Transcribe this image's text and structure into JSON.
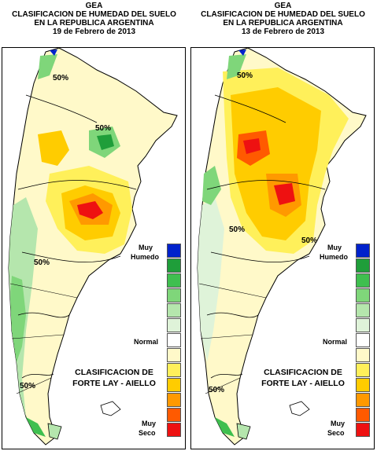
{
  "panels": [
    {
      "org": "GEA",
      "title1": "CLASIFICACION DE HUMEDAD DEL SUELO",
      "title2": "EN LA REPUBLICA ARGENTINA",
      "date": "19 de Febrero de 2013",
      "contour_labels": [
        "50%",
        "50%",
        "50%",
        "50%"
      ]
    },
    {
      "org": "GEA",
      "title1": "CLASIFICACION DE HUMEDAD DEL SUELO",
      "title2": "EN LA REPUBLICA ARGENTINA",
      "date": "13 de Febrero de 2013",
      "contour_labels": [
        "50%",
        "50%",
        "50%",
        "50%"
      ]
    }
  ],
  "legend": {
    "top_label_1": "Muy",
    "top_label_2": "Humedo",
    "mid_label": "Normal",
    "bottom_label_1": "Muy",
    "bottom_label_2": "Seco",
    "classification_1": "CLASIFICACION DE",
    "classification_2": "FORTE LAY - AIELLO",
    "colors": [
      "#0022cc",
      "#1f9e3a",
      "#3fbf4f",
      "#7fd67a",
      "#b5e6ad",
      "#dff3d9",
      "#ffffff",
      "#fff9c9",
      "#fff05a",
      "#ffcc00",
      "#ff9900",
      "#ff5a00",
      "#ee1111"
    ]
  }
}
